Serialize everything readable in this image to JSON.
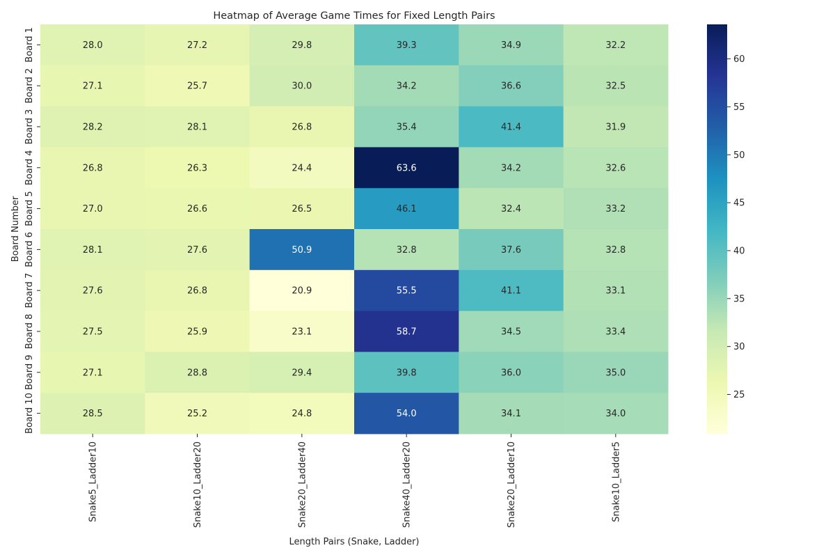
{
  "chart_data": {
    "type": "heatmap",
    "title": "Heatmap of Average Game Times for Fixed Length Pairs",
    "xlabel": "Length Pairs (Snake, Ladder)",
    "ylabel": "Board Number",
    "columns": [
      "Snake5_Ladder10",
      "Snake10_Ladder20",
      "Snake20_Ladder40",
      "Snake40_Ladder20",
      "Snake20_Ladder10",
      "Snake10_Ladder5"
    ],
    "rows": [
      "Board 1",
      "Board 2",
      "Board 3",
      "Board 4",
      "Board 5",
      "Board 6",
      "Board 7",
      "Board 8",
      "Board 9",
      "Board 10"
    ],
    "values": [
      [
        28.0,
        27.2,
        29.8,
        39.3,
        34.9,
        32.2
      ],
      [
        27.1,
        25.7,
        30.0,
        34.2,
        36.6,
        32.5
      ],
      [
        28.2,
        28.1,
        26.8,
        35.4,
        41.4,
        31.9
      ],
      [
        26.8,
        26.3,
        24.4,
        63.6,
        34.2,
        32.6
      ],
      [
        27.0,
        26.6,
        26.5,
        46.1,
        32.4,
        33.2
      ],
      [
        28.1,
        27.6,
        50.9,
        32.8,
        37.6,
        32.8
      ],
      [
        27.6,
        26.8,
        20.9,
        55.5,
        41.1,
        33.1
      ],
      [
        27.5,
        25.9,
        23.1,
        58.7,
        34.5,
        33.4
      ],
      [
        27.1,
        28.8,
        29.4,
        39.8,
        36.0,
        35.0
      ],
      [
        28.5,
        25.2,
        24.8,
        54.0,
        34.1,
        34.0
      ]
    ],
    "value_format": "0.0",
    "colormap": "YlGnBu",
    "colorbar": {
      "range": [
        20.9,
        63.6
      ],
      "ticks": [
        25,
        30,
        35,
        40,
        45,
        50,
        55,
        60
      ]
    },
    "colormap_stops": [
      "#ffffd9",
      "#edf8b1",
      "#c7e9b4",
      "#7fcdbb",
      "#41b6c4",
      "#1d91c0",
      "#225ea8",
      "#253494",
      "#081d58"
    ],
    "label_colors": {
      "light_bg": "#262626",
      "dark_bg": "#ffffff"
    }
  }
}
